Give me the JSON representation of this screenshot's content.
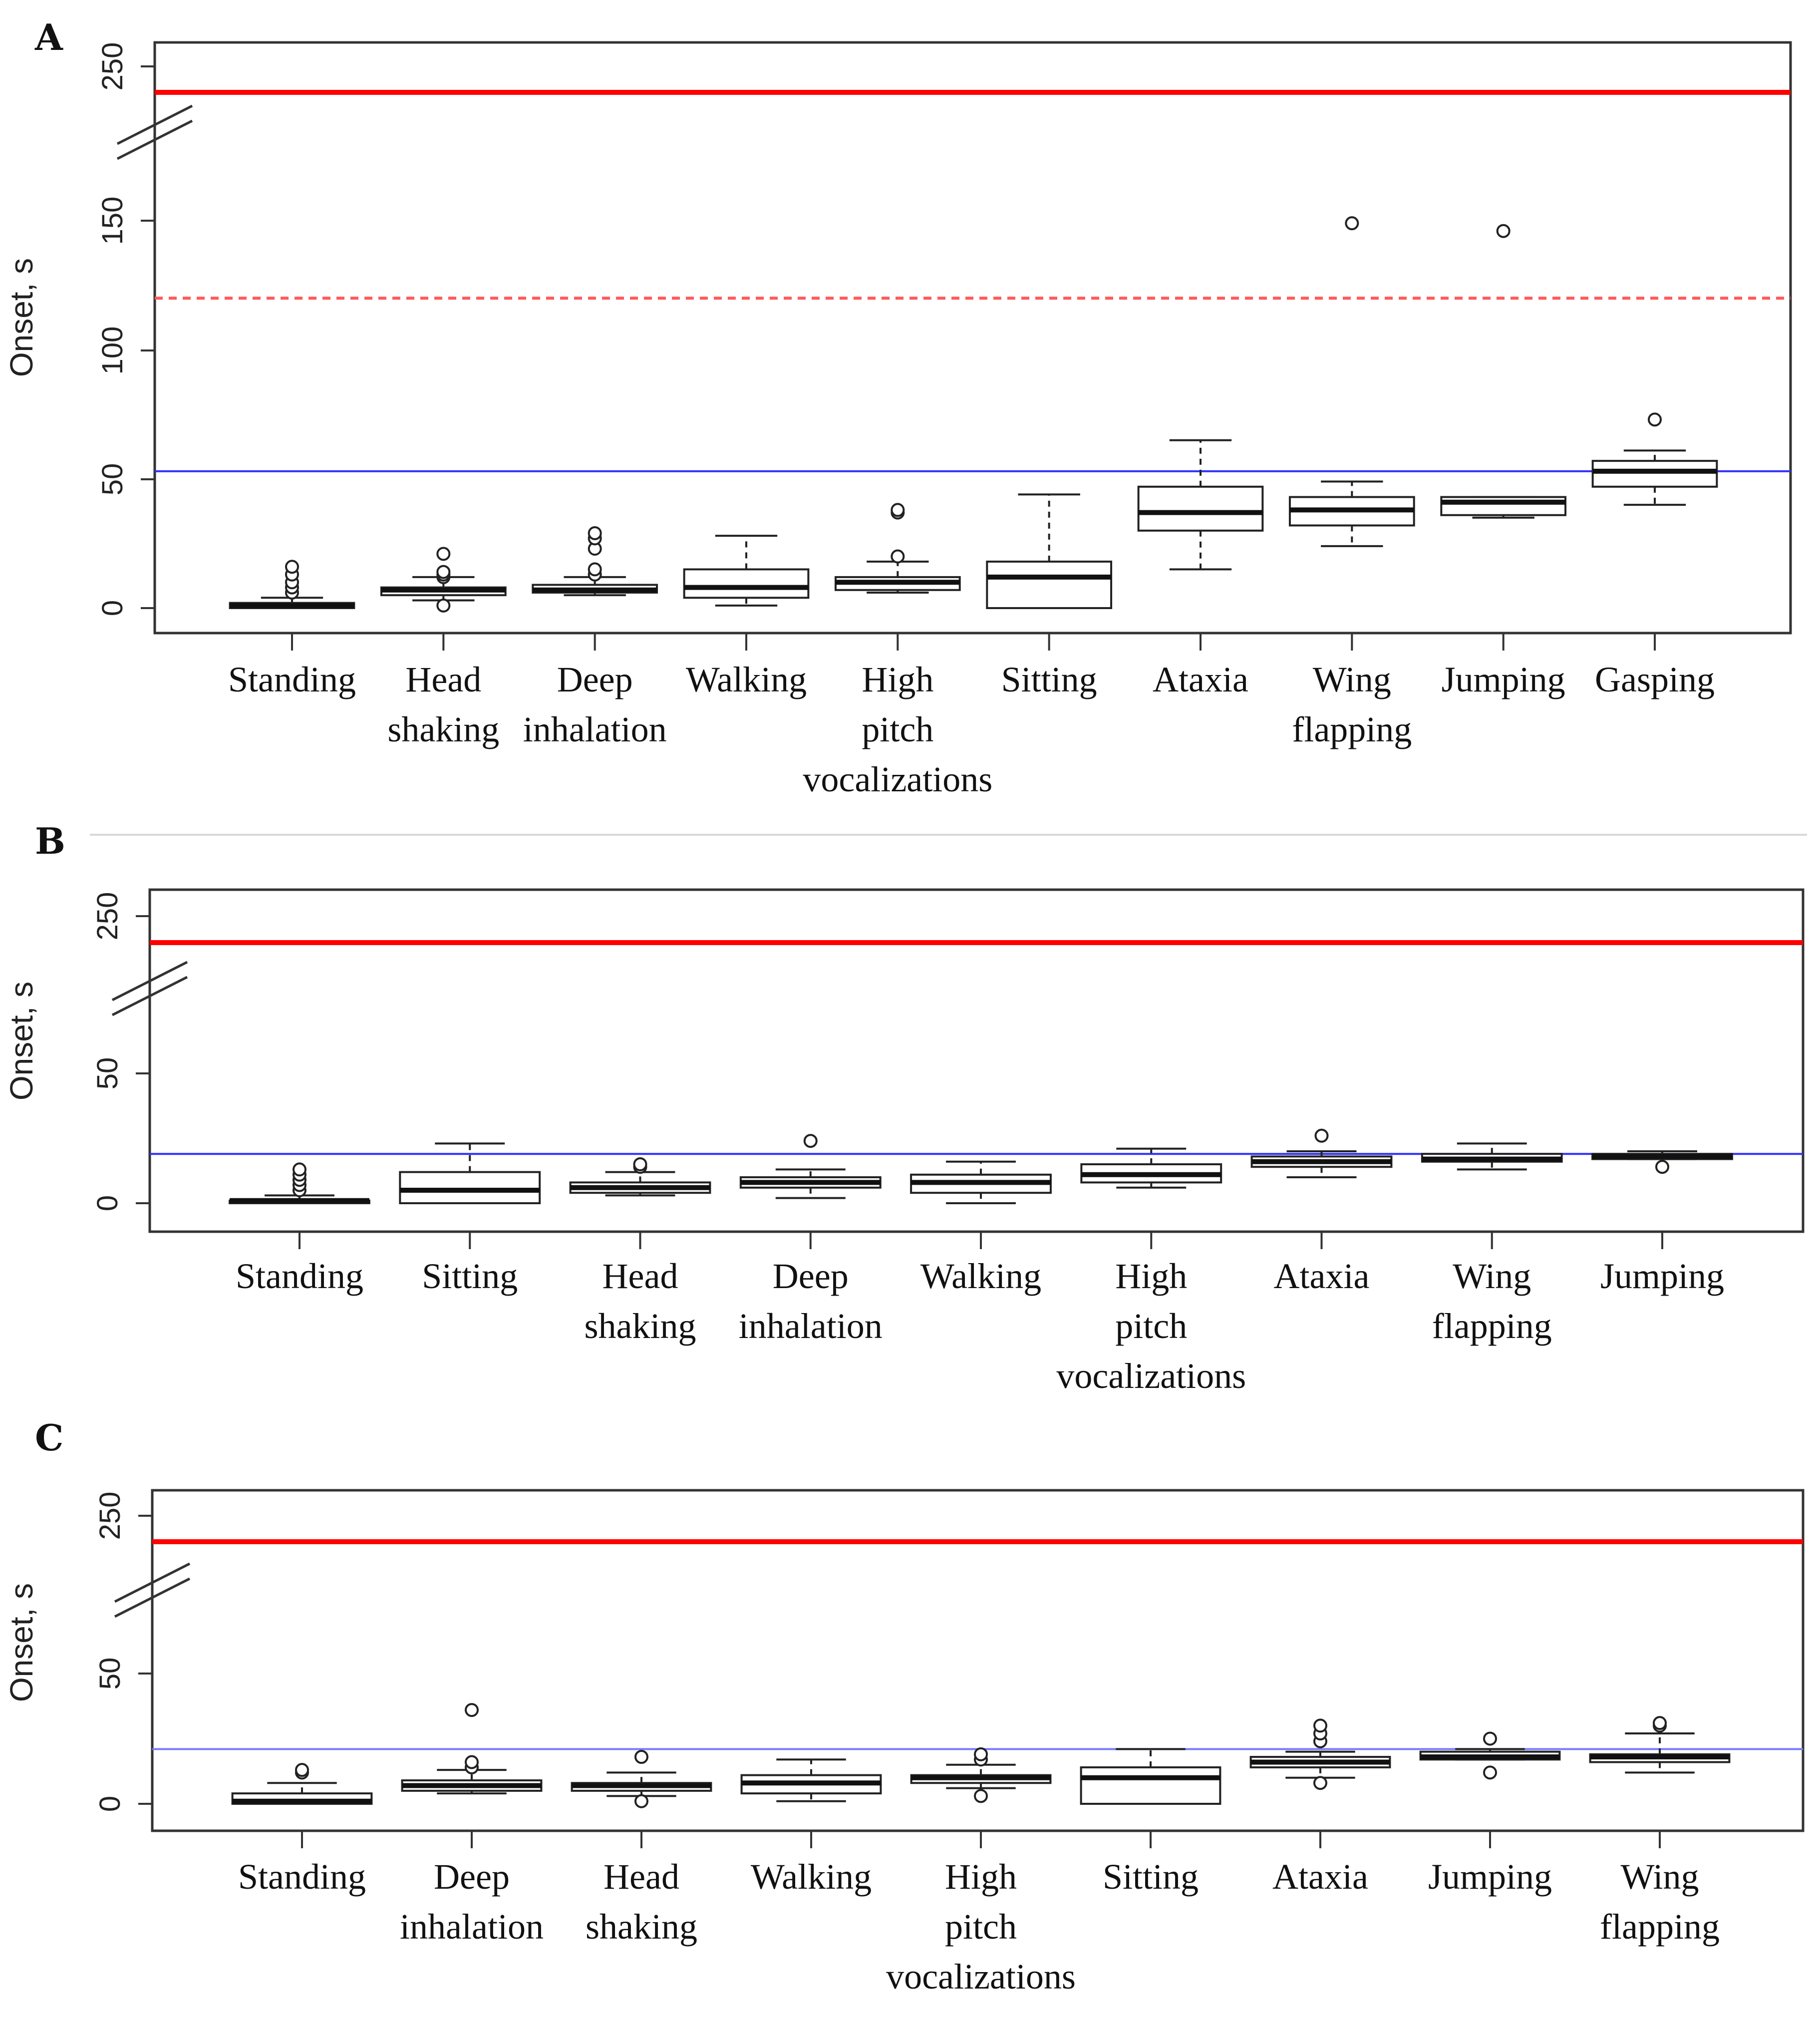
{
  "chart_data": [
    {
      "type": "box",
      "panel": "A",
      "ylabel": "Onset, s",
      "yticks": [
        "0",
        "50",
        "100",
        "150",
        "250"
      ],
      "axis_break": "between 150 and 250",
      "reference_lines": [
        {
          "style": "solid",
          "color": "#ff0000",
          "value": 240
        },
        {
          "style": "dashed",
          "color": "#ff5a5a",
          "value": 120
        },
        {
          "style": "solid",
          "color": "#3030ff",
          "value": 53
        }
      ],
      "categories": [
        {
          "label": [
            "Standing"
          ],
          "box": {
            "whislo": 0,
            "q1": 0,
            "med": 1,
            "q3": 2,
            "whishi": 4,
            "fliers": [
              6,
              8,
              10,
              13,
              16
            ]
          }
        },
        {
          "label": [
            "Head",
            "shaking"
          ],
          "box": {
            "whislo": 3,
            "q1": 5,
            "med": 7,
            "q3": 8,
            "whishi": 12,
            "fliers": [
              1,
              12,
              13,
              14,
              21
            ]
          }
        },
        {
          "label": [
            "Deep",
            "inhalation"
          ],
          "box": {
            "whislo": 5,
            "q1": 6,
            "med": 7,
            "q3": 9,
            "whishi": 12,
            "fliers": [
              13,
              15,
              23,
              27,
              29
            ]
          }
        },
        {
          "label": [
            "Walking"
          ],
          "box": {
            "whislo": 1,
            "q1": 4,
            "med": 8,
            "q3": 15,
            "whishi": 28,
            "fliers": []
          }
        },
        {
          "label": [
            "High",
            "pitch",
            "vocalizations"
          ],
          "box": {
            "whislo": 6,
            "q1": 7,
            "med": 10,
            "q3": 12,
            "whishi": 18,
            "fliers": [
              20,
              37,
              38
            ]
          }
        },
        {
          "label": [
            "Sitting"
          ],
          "box": {
            "whislo": 0,
            "q1": 0,
            "med": 12,
            "q3": 18,
            "whishi": 44,
            "fliers": []
          }
        },
        {
          "label": [
            "Ataxia"
          ],
          "box": {
            "whislo": 15,
            "q1": 30,
            "med": 37,
            "q3": 47,
            "whishi": 65,
            "fliers": []
          }
        },
        {
          "label": [
            "Wing",
            "flapping"
          ],
          "box": {
            "whislo": 24,
            "q1": 32,
            "med": 38,
            "q3": 43,
            "whishi": 49,
            "fliers": [
              149
            ]
          }
        },
        {
          "label": [
            "Jumping"
          ],
          "box": {
            "whislo": 35,
            "q1": 36,
            "med": 41,
            "q3": 43,
            "whishi": 43,
            "fliers": [
              146
            ]
          }
        },
        {
          "label": [
            "Gasping"
          ],
          "box": {
            "whislo": 40,
            "q1": 47,
            "med": 53,
            "q3": 57,
            "whishi": 61,
            "fliers": [
              73
            ]
          }
        }
      ]
    },
    {
      "type": "box",
      "panel": "B",
      "ylabel": "Onset, s",
      "yticks": [
        "0",
        "50",
        "250"
      ],
      "axis_break": "between 50 and 250",
      "reference_lines": [
        {
          "style": "solid",
          "color": "#ff0000",
          "value": 240
        },
        {
          "style": "solid",
          "color": "#3030ff",
          "value": 19
        }
      ],
      "categories": [
        {
          "label": [
            "Standing"
          ],
          "box": {
            "whislo": 0,
            "q1": 0,
            "med": 1,
            "q3": 1,
            "whishi": 3,
            "fliers": [
              5,
              7,
              9,
              11,
              13
            ]
          }
        },
        {
          "label": [
            "Sitting"
          ],
          "box": {
            "whislo": 0,
            "q1": 0,
            "med": 5,
            "q3": 12,
            "whishi": 23,
            "fliers": []
          }
        },
        {
          "label": [
            "Head",
            "shaking"
          ],
          "box": {
            "whislo": 3,
            "q1": 4,
            "med": 6,
            "q3": 8,
            "whishi": 12,
            "fliers": [
              14,
              15
            ]
          }
        },
        {
          "label": [
            "Deep",
            "inhalation"
          ],
          "box": {
            "whislo": 2,
            "q1": 6,
            "med": 8,
            "q3": 10,
            "whishi": 13,
            "fliers": [
              24
            ]
          }
        },
        {
          "label": [
            "Walking"
          ],
          "box": {
            "whislo": 0,
            "q1": 4,
            "med": 8,
            "q3": 11,
            "whishi": 16,
            "fliers": []
          }
        },
        {
          "label": [
            "High",
            "pitch",
            "vocalizations"
          ],
          "box": {
            "whislo": 6,
            "q1": 8,
            "med": 11,
            "q3": 15,
            "whishi": 21,
            "fliers": []
          }
        },
        {
          "label": [
            "Ataxia"
          ],
          "box": {
            "whislo": 10,
            "q1": 14,
            "med": 16,
            "q3": 18,
            "whishi": 20,
            "fliers": [
              26
            ]
          }
        },
        {
          "label": [
            "Wing",
            "flapping"
          ],
          "box": {
            "whislo": 13,
            "q1": 16,
            "med": 17,
            "q3": 19,
            "whishi": 23,
            "fliers": []
          }
        },
        {
          "label": [
            "Jumping"
          ],
          "box": {
            "whislo": 17,
            "q1": 17,
            "med": 18,
            "q3": 19,
            "whishi": 20,
            "fliers": [
              14
            ]
          }
        }
      ]
    },
    {
      "type": "box",
      "panel": "C",
      "ylabel": "Onset, s",
      "yticks": [
        "0",
        "50",
        "250"
      ],
      "axis_break": "between 50 and 250",
      "reference_lines": [
        {
          "style": "solid",
          "color": "#ff0000",
          "value": 240
        },
        {
          "style": "solid",
          "color": "#7a7aff",
          "value": 21
        }
      ],
      "categories": [
        {
          "label": [
            "Standing"
          ],
          "box": {
            "whislo": 0,
            "q1": 0,
            "med": 1,
            "q3": 4,
            "whishi": 8,
            "fliers": [
              12,
              13
            ]
          }
        },
        {
          "label": [
            "Deep",
            "inhalation"
          ],
          "box": {
            "whislo": 4,
            "q1": 5,
            "med": 7,
            "q3": 9,
            "whishi": 13,
            "fliers": [
              14,
              16,
              36
            ]
          }
        },
        {
          "label": [
            "Head",
            "shaking"
          ],
          "box": {
            "whislo": 3,
            "q1": 5,
            "med": 7,
            "q3": 8,
            "whishi": 12,
            "fliers": [
              1,
              18
            ]
          }
        },
        {
          "label": [
            "Walking"
          ],
          "box": {
            "whislo": 1,
            "q1": 4,
            "med": 8,
            "q3": 11,
            "whishi": 17,
            "fliers": []
          }
        },
        {
          "label": [
            "High",
            "pitch",
            "vocalizations"
          ],
          "box": {
            "whislo": 6,
            "q1": 8,
            "med": 10,
            "q3": 11,
            "whishi": 15,
            "fliers": [
              3,
              17,
              19
            ]
          }
        },
        {
          "label": [
            "Sitting"
          ],
          "box": {
            "whislo": 0,
            "q1": 0,
            "med": 10,
            "q3": 14,
            "whishi": 21,
            "fliers": []
          }
        },
        {
          "label": [
            "Ataxia"
          ],
          "box": {
            "whislo": 10,
            "q1": 14,
            "med": 16,
            "q3": 18,
            "whishi": 20,
            "fliers": [
              8,
              24,
              27,
              30
            ]
          }
        },
        {
          "label": [
            "Jumping"
          ],
          "box": {
            "whislo": 17,
            "q1": 17,
            "med": 18,
            "q3": 20,
            "whishi": 21,
            "fliers": [
              12,
              25
            ]
          }
        },
        {
          "label": [
            "Wing",
            "flapping"
          ],
          "box": {
            "whislo": 12,
            "q1": 16,
            "med": 18,
            "q3": 19,
            "whishi": 27,
            "fliers": [
              30,
              31
            ]
          }
        }
      ]
    }
  ]
}
